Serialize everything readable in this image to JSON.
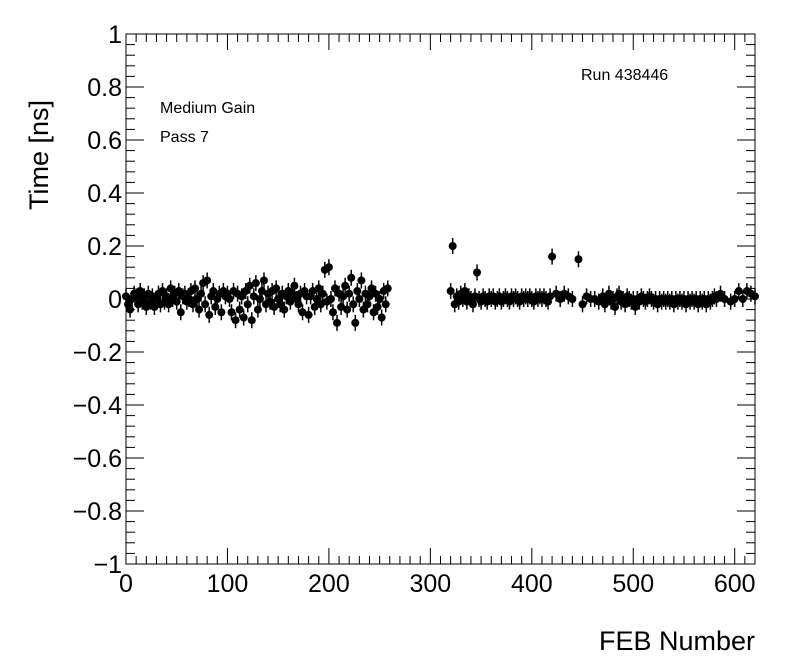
{
  "chart_data": {
    "type": "scatter",
    "title": "",
    "xlabel": "FEB Number",
    "ylabel": "Time [ns]",
    "xlim": [
      0,
      620
    ],
    "ylim": [
      -1,
      1
    ],
    "x_ticks": [
      0,
      100,
      200,
      300,
      400,
      500,
      600
    ],
    "x_tick_labels": [
      "0",
      "100",
      "200",
      "300",
      "400",
      "500",
      "600"
    ],
    "y_ticks": [
      -1,
      -0.8,
      -0.6,
      -0.4,
      -0.2,
      0,
      0.2,
      0.4,
      0.6,
      0.8,
      1
    ],
    "y_tick_labels": [
      "−1",
      "−0.8",
      "−0.6",
      "−0.4",
      "−0.2",
      "0",
      "0.2",
      "0.4",
      "0.6",
      "0.8",
      "1"
    ],
    "annotations": {
      "run": "Run 438446",
      "gain": "Medium Gain",
      "pass": "Pass 7"
    },
    "grid": false,
    "legend": "none",
    "marker_color": "#000000",
    "series": [
      {
        "points": [
          [
            0,
            0.01
          ],
          [
            2,
            -0.02
          ],
          [
            4,
            -0.04
          ],
          [
            6,
            0.0
          ],
          [
            8,
            0.02
          ],
          [
            10,
            0.01
          ],
          [
            12,
            -0.02
          ],
          [
            14,
            0.03
          ],
          [
            16,
            -0.01
          ],
          [
            18,
            0.01
          ],
          [
            20,
            -0.03
          ],
          [
            22,
            0.02
          ],
          [
            24,
            -0.01
          ],
          [
            26,
            0.01
          ],
          [
            28,
            -0.03
          ],
          [
            30,
            0.0
          ],
          [
            32,
            0.02
          ],
          [
            34,
            -0.02
          ],
          [
            36,
            0.03
          ],
          [
            38,
            -0.01
          ],
          [
            40,
            0.01
          ],
          [
            42,
            -0.02
          ],
          [
            44,
            0.04
          ],
          [
            46,
            0.0
          ],
          [
            48,
            0.02
          ],
          [
            50,
            -0.01
          ],
          [
            52,
            0.03
          ],
          [
            54,
            -0.05
          ],
          [
            56,
            0.01
          ],
          [
            58,
            0.02
          ],
          [
            60,
            -0.01
          ],
          [
            62,
            0.0
          ],
          [
            64,
            0.03
          ],
          [
            66,
            -0.02
          ],
          [
            68,
            0.04
          ],
          [
            70,
            0.0
          ],
          [
            72,
            -0.04
          ],
          [
            74,
            0.02
          ],
          [
            76,
            0.06
          ],
          [
            78,
            -0.02
          ],
          [
            80,
            0.07
          ],
          [
            82,
            -0.06
          ],
          [
            84,
            0.01
          ],
          [
            86,
            0.03
          ],
          [
            88,
            -0.03
          ],
          [
            90,
            0.0
          ],
          [
            92,
            0.02
          ],
          [
            94,
            -0.05
          ],
          [
            96,
            0.03
          ],
          [
            98,
            0.01
          ],
          [
            100,
            0.02
          ],
          [
            102,
            0.0
          ],
          [
            104,
            -0.05
          ],
          [
            106,
            0.03
          ],
          [
            108,
            -0.08
          ],
          [
            110,
            0.02
          ],
          [
            112,
            -0.04
          ],
          [
            114,
            0.01
          ],
          [
            116,
            -0.07
          ],
          [
            118,
            0.03
          ],
          [
            120,
            -0.02
          ],
          [
            122,
            0.05
          ],
          [
            124,
            -0.08
          ],
          [
            126,
            0.01
          ],
          [
            128,
            0.06
          ],
          [
            130,
            -0.04
          ],
          [
            132,
            0.0
          ],
          [
            134,
            0.03
          ],
          [
            136,
            0.07
          ],
          [
            138,
            -0.02
          ],
          [
            140,
            0.02
          ],
          [
            142,
            -0.01
          ],
          [
            144,
            0.03
          ],
          [
            146,
            -0.03
          ],
          [
            148,
            0.04
          ],
          [
            150,
            0.0
          ],
          [
            152,
            -0.02
          ],
          [
            154,
            0.02
          ],
          [
            156,
            -0.04
          ],
          [
            158,
            0.01
          ],
          [
            160,
            0.03
          ],
          [
            162,
            -0.01
          ],
          [
            164,
            0.02
          ],
          [
            166,
            0.05
          ],
          [
            168,
            0.0
          ],
          [
            170,
            -0.02
          ],
          [
            172,
            0.02
          ],
          [
            174,
            -0.05
          ],
          [
            176,
            0.03
          ],
          [
            178,
            0.01
          ],
          [
            180,
            -0.06
          ],
          [
            182,
            0.01
          ],
          [
            184,
            0.03
          ],
          [
            186,
            -0.03
          ],
          [
            188,
            0.0
          ],
          [
            190,
            0.04
          ],
          [
            192,
            -0.02
          ],
          [
            194,
            0.02
          ],
          [
            196,
            0.11
          ],
          [
            198,
            -0.01
          ],
          [
            200,
            0.12
          ],
          [
            202,
            0.0
          ],
          [
            204,
            -0.05
          ],
          [
            206,
            0.04
          ],
          [
            208,
            -0.09
          ],
          [
            210,
            0.02
          ],
          [
            212,
            -0.03
          ],
          [
            214,
            0.01
          ],
          [
            216,
            0.05
          ],
          [
            218,
            -0.04
          ],
          [
            220,
            0.02
          ],
          [
            222,
            0.08
          ],
          [
            224,
            -0.02
          ],
          [
            226,
            -0.09
          ],
          [
            228,
            0.03
          ],
          [
            230,
            0.0
          ],
          [
            232,
            0.07
          ],
          [
            234,
            -0.04
          ],
          [
            236,
            0.02
          ],
          [
            238,
            -0.02
          ],
          [
            240,
            0.01
          ],
          [
            242,
            0.04
          ],
          [
            244,
            -0.05
          ],
          [
            246,
            0.02
          ],
          [
            248,
            -0.03
          ],
          [
            250,
            0.0
          ],
          [
            252,
            -0.07
          ],
          [
            254,
            0.03
          ],
          [
            256,
            -0.02
          ],
          [
            258,
            0.04
          ],
          [
            320,
            0.03
          ],
          [
            322,
            0.2
          ],
          [
            324,
            -0.02
          ],
          [
            326,
            0.01
          ],
          [
            328,
            -0.01
          ],
          [
            330,
            0.02
          ],
          [
            332,
            0.0
          ],
          [
            334,
            0.03
          ],
          [
            336,
            -0.01
          ],
          [
            338,
            0.01
          ],
          [
            340,
            0.0
          ],
          [
            342,
            -0.02
          ],
          [
            344,
            0.01
          ],
          [
            346,
            0.1
          ],
          [
            348,
            0.0
          ],
          [
            350,
            -0.01
          ],
          [
            352,
            0.01
          ],
          [
            354,
            0.0
          ],
          [
            356,
            -0.01
          ],
          [
            358,
            0.01
          ],
          [
            360,
            0.0
          ],
          [
            362,
            0.01
          ],
          [
            364,
            -0.01
          ],
          [
            366,
            0.0
          ],
          [
            368,
            0.01
          ],
          [
            370,
            -0.01
          ],
          [
            372,
            0.0
          ],
          [
            374,
            0.01
          ],
          [
            376,
            0.0
          ],
          [
            378,
            -0.01
          ],
          [
            380,
            0.01
          ],
          [
            382,
            0.0
          ],
          [
            384,
            0.01
          ],
          [
            386,
            0.0
          ],
          [
            388,
            -0.01
          ],
          [
            390,
            0.01
          ],
          [
            392,
            0.0
          ],
          [
            394,
            0.01
          ],
          [
            396,
            0.0
          ],
          [
            398,
            0.01
          ],
          [
            400,
            0.0
          ],
          [
            402,
            -0.01
          ],
          [
            404,
            0.01
          ],
          [
            406,
            0.0
          ],
          [
            408,
            0.01
          ],
          [
            410,
            0.0
          ],
          [
            412,
            0.01
          ],
          [
            414,
            0.0
          ],
          [
            416,
            -0.01
          ],
          [
            418,
            0.01
          ],
          [
            420,
            0.16
          ],
          [
            424,
            0.02
          ],
          [
            428,
            0.0
          ],
          [
            432,
            0.02
          ],
          [
            436,
            0.01
          ],
          [
            440,
            0.0
          ],
          [
            446,
            0.15
          ],
          [
            450,
            -0.02
          ],
          [
            454,
            0.01
          ],
          [
            458,
            0.0
          ],
          [
            462,
            0.0
          ],
          [
            466,
            -0.01
          ],
          [
            470,
            0.01
          ],
          [
            472,
            -0.02
          ],
          [
            474,
            0.0
          ],
          [
            476,
            0.02
          ],
          [
            478,
            -0.01
          ],
          [
            480,
            0.0
          ],
          [
            482,
            -0.03
          ],
          [
            484,
            0.01
          ],
          [
            486,
            0.02
          ],
          [
            488,
            -0.01
          ],
          [
            490,
            0.0
          ],
          [
            492,
            -0.02
          ],
          [
            494,
            0.01
          ],
          [
            496,
            0.0
          ],
          [
            498,
            -0.01
          ],
          [
            500,
            0.0
          ],
          [
            502,
            -0.03
          ],
          [
            504,
            0.0
          ],
          [
            506,
            -0.01
          ],
          [
            508,
            0.01
          ],
          [
            510,
            0.0
          ],
          [
            512,
            -0.01
          ],
          [
            514,
            0.0
          ],
          [
            516,
            0.01
          ],
          [
            518,
            0.0
          ],
          [
            520,
            -0.01
          ],
          [
            522,
            0.0
          ],
          [
            524,
            -0.02
          ],
          [
            526,
            0.0
          ],
          [
            528,
            -0.01
          ],
          [
            530,
            0.0
          ],
          [
            532,
            -0.01
          ],
          [
            534,
            0.0
          ],
          [
            536,
            -0.01
          ],
          [
            538,
            0.0
          ],
          [
            540,
            -0.02
          ],
          [
            542,
            0.0
          ],
          [
            544,
            -0.01
          ],
          [
            546,
            0.0
          ],
          [
            548,
            -0.01
          ],
          [
            550,
            0.0
          ],
          [
            552,
            -0.02
          ],
          [
            554,
            0.0
          ],
          [
            556,
            -0.01
          ],
          [
            558,
            0.0
          ],
          [
            560,
            -0.01
          ],
          [
            562,
            0.0
          ],
          [
            564,
            -0.02
          ],
          [
            566,
            0.0
          ],
          [
            568,
            -0.01
          ],
          [
            570,
            0.0
          ],
          [
            572,
            -0.02
          ],
          [
            574,
            0.0
          ],
          [
            576,
            -0.01
          ],
          [
            578,
            0.0
          ],
          [
            580,
            0.01
          ],
          [
            582,
            0.0
          ],
          [
            586,
            0.02
          ],
          [
            590,
            0.0
          ],
          [
            596,
            -0.01
          ],
          [
            600,
            0.0
          ],
          [
            604,
            0.03
          ],
          [
            608,
            0.0
          ],
          [
            612,
            0.03
          ],
          [
            616,
            0.02
          ],
          [
            620,
            0.01
          ]
        ]
      }
    ]
  }
}
